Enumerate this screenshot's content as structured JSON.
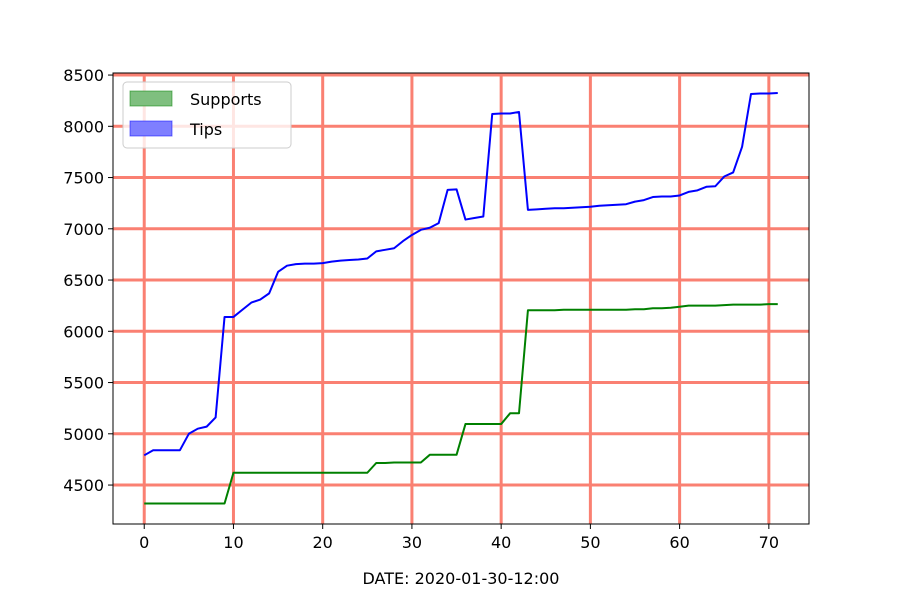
{
  "chart_data": {
    "type": "line",
    "title": "",
    "xlabel": "DATE: 2020-01-30-12:00",
    "ylabel": "",
    "xlim": [
      -3.5,
      74.5
    ],
    "ylim": [
      4120,
      8520
    ],
    "xticks": [
      0,
      10,
      20,
      30,
      40,
      50,
      60,
      70
    ],
    "yticks": [
      4500,
      5000,
      5500,
      6000,
      6500,
      7000,
      7500,
      8000,
      8500
    ],
    "grid": true,
    "grid_color": "#fa8072",
    "legend_position": "top-left",
    "series": [
      {
        "name": "Supports",
        "color": "#008000",
        "legend_fill": "#7fbf7f",
        "x": [
          0,
          1,
          2,
          3,
          4,
          5,
          6,
          7,
          8,
          9,
          10,
          11,
          12,
          13,
          14,
          15,
          16,
          17,
          18,
          19,
          20,
          21,
          22,
          23,
          24,
          25,
          26,
          27,
          28,
          29,
          30,
          31,
          32,
          33,
          34,
          35,
          36,
          37,
          38,
          39,
          40,
          41,
          42,
          43,
          44,
          45,
          46,
          47,
          48,
          49,
          50,
          51,
          52,
          53,
          54,
          55,
          56,
          57,
          58,
          59,
          60,
          61,
          62,
          63,
          64,
          65,
          66,
          67,
          68,
          69,
          70,
          71
        ],
        "values": [
          4320,
          4320,
          4320,
          4320,
          4320,
          4320,
          4320,
          4320,
          4320,
          4320,
          4620,
          4620,
          4620,
          4620,
          4620,
          4620,
          4620,
          4620,
          4620,
          4620,
          4620,
          4620,
          4620,
          4620,
          4620,
          4620,
          4715,
          4715,
          4720,
          4720,
          4720,
          4720,
          4795,
          4795,
          4795,
          4795,
          5095,
          5095,
          5095,
          5095,
          5095,
          5200,
          5200,
          6205,
          6205,
          6205,
          6205,
          6210,
          6210,
          6210,
          6210,
          6210,
          6210,
          6210,
          6210,
          6215,
          6215,
          6225,
          6225,
          6230,
          6240,
          6250,
          6250,
          6250,
          6250,
          6255,
          6260,
          6260,
          6260,
          6260,
          6265,
          6265
        ]
      },
      {
        "name": "Tips",
        "color": "#0000ff",
        "legend_fill": "#7f7fff",
        "x": [
          0,
          1,
          2,
          3,
          4,
          5,
          6,
          7,
          8,
          9,
          10,
          11,
          12,
          13,
          14,
          15,
          16,
          17,
          18,
          19,
          20,
          21,
          22,
          23,
          24,
          25,
          26,
          27,
          28,
          29,
          30,
          31,
          32,
          33,
          34,
          35,
          36,
          37,
          38,
          39,
          40,
          41,
          42,
          43,
          44,
          45,
          46,
          47,
          48,
          49,
          50,
          51,
          52,
          53,
          54,
          55,
          56,
          57,
          58,
          59,
          60,
          61,
          62,
          63,
          64,
          65,
          66,
          67,
          68,
          69,
          70,
          71
        ],
        "values": [
          4790,
          4840,
          4840,
          4840,
          4840,
          5000,
          5050,
          5070,
          5160,
          6140,
          6140,
          6210,
          6280,
          6310,
          6370,
          6580,
          6640,
          6655,
          6660,
          6660,
          6665,
          6680,
          6690,
          6695,
          6700,
          6710,
          6780,
          6795,
          6810,
          6880,
          6940,
          6990,
          7010,
          7055,
          7380,
          7385,
          7090,
          7105,
          7120,
          8120,
          8125,
          8125,
          8140,
          7185,
          7190,
          7195,
          7200,
          7200,
          7205,
          7210,
          7215,
          7225,
          7230,
          7235,
          7240,
          7265,
          7280,
          7310,
          7315,
          7315,
          7325,
          7360,
          7375,
          7410,
          7415,
          7510,
          7550,
          7800,
          8315,
          8320,
          8320,
          8325
        ]
      }
    ]
  }
}
